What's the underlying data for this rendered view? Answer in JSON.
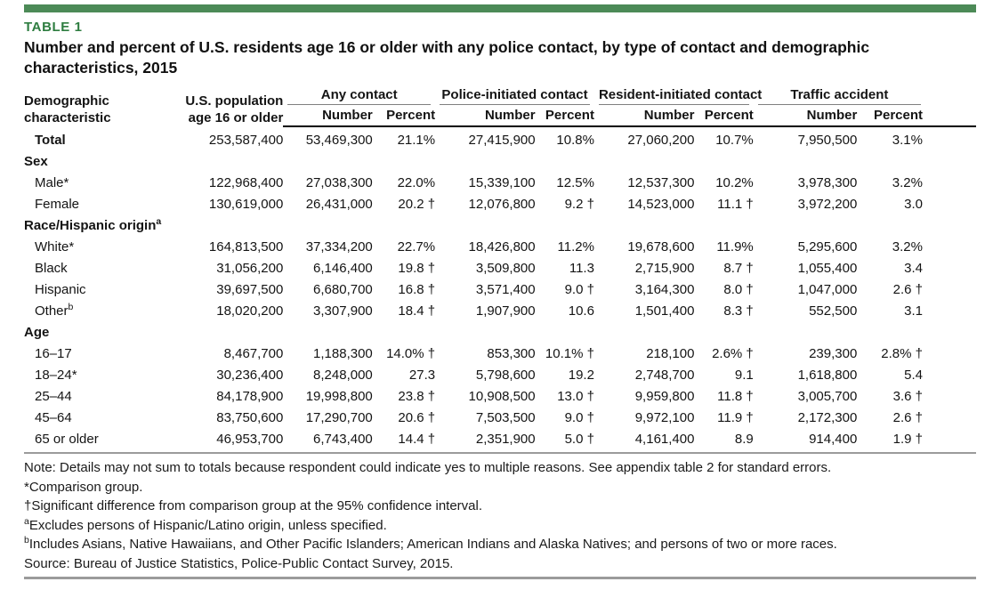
{
  "accent_color": "#4c8a57",
  "table": {
    "tag": "TABLE 1",
    "title": "Number and percent of U.S. residents age 16 or older with any police contact, by type of contact and demographic characteristics, 2015",
    "headers": {
      "demographic": "Demographic\ncharacteristic",
      "population": "U.S. population\nage 16 or older",
      "groups": [
        "Any contact",
        "Police-initiated contact",
        "Resident-initiated contact",
        "Traffic accident"
      ],
      "sub": [
        "Number",
        "Percent"
      ]
    },
    "rows": [
      {
        "type": "data",
        "label": "Total",
        "bold": true,
        "cells": [
          "253,587,400",
          "53,469,300",
          "21.1%",
          "27,415,900",
          "10.8%",
          "27,060,200",
          "10.7%",
          "7,950,500",
          "3.1%"
        ]
      },
      {
        "type": "section",
        "label": "Sex"
      },
      {
        "type": "data",
        "label": "Male*",
        "cells": [
          "122,968,400",
          "27,038,300",
          "22.0%",
          "15,339,100",
          "12.5%",
          "12,537,300",
          "10.2%",
          "3,978,300",
          "3.2%"
        ]
      },
      {
        "type": "data",
        "label": "Female",
        "cells": [
          "130,619,000",
          "26,431,000",
          "20.2 †",
          "12,076,800",
          "9.2 †",
          "14,523,000",
          "11.1 †",
          "3,972,200",
          "3.0"
        ]
      },
      {
        "type": "section",
        "label": "Race/Hispanic origin",
        "sup": "a"
      },
      {
        "type": "data",
        "label": "White*",
        "cells": [
          "164,813,500",
          "37,334,200",
          "22.7%",
          "18,426,800",
          "11.2%",
          "19,678,600",
          "11.9%",
          "5,295,600",
          "3.2%"
        ]
      },
      {
        "type": "data",
        "label": "Black",
        "cells": [
          "31,056,200",
          "6,146,400",
          "19.8 †",
          "3,509,800",
          "11.3",
          "2,715,900",
          "8.7 †",
          "1,055,400",
          "3.4"
        ]
      },
      {
        "type": "data",
        "label": "Hispanic",
        "cells": [
          "39,697,500",
          "6,680,700",
          "16.8 †",
          "3,571,400",
          "9.0 †",
          "3,164,300",
          "8.0 †",
          "1,047,000",
          "2.6 †"
        ]
      },
      {
        "type": "data",
        "label": "Other",
        "sup": "b",
        "cells": [
          "18,020,200",
          "3,307,900",
          "18.4 †",
          "1,907,900",
          "10.6",
          "1,501,400",
          "8.3 †",
          "552,500",
          "3.1"
        ]
      },
      {
        "type": "section",
        "label": "Age"
      },
      {
        "type": "data",
        "label": "16–17",
        "cells": [
          "8,467,700",
          "1,188,300",
          "14.0% †",
          "853,300",
          "10.1% †",
          "218,100",
          "2.6% †",
          "239,300",
          "2.8% †"
        ]
      },
      {
        "type": "data",
        "label": "18–24*",
        "cells": [
          "30,236,400",
          "8,248,000",
          "27.3",
          "5,798,600",
          "19.2",
          "2,748,700",
          "9.1",
          "1,618,800",
          "5.4"
        ]
      },
      {
        "type": "data",
        "label": "25–44",
        "cells": [
          "84,178,900",
          "19,998,800",
          "23.8 †",
          "10,908,500",
          "13.0 †",
          "9,959,800",
          "11.8 †",
          "3,005,700",
          "3.6 †"
        ]
      },
      {
        "type": "data",
        "label": "45–64",
        "cells": [
          "83,750,600",
          "17,290,700",
          "20.6 †",
          "7,503,500",
          "9.0 †",
          "9,972,100",
          "11.9 †",
          "2,172,300",
          "2.6 †"
        ]
      },
      {
        "type": "data",
        "label": "65 or older",
        "cells": [
          "46,953,700",
          "6,743,400",
          "14.4 †",
          "2,351,900",
          "5.0 †",
          "4,161,400",
          "8.9",
          "914,400",
          "1.9 †"
        ]
      }
    ]
  },
  "footnotes": [
    {
      "text": "Note: Details may not sum to totals because respondent could indicate yes to multiple reasons. See appendix table 2 for standard errors."
    },
    {
      "text": "*Comparison group."
    },
    {
      "text": "†Significant difference from comparison group at the 95% confidence interval."
    },
    {
      "sup": "a",
      "text": "Excludes persons of Hispanic/Latino origin, unless specified."
    },
    {
      "sup": "b",
      "text": "Includes Asians, Native Hawaiians, and Other Pacific Islanders; American Indians and Alaska Natives; and persons of two or more races."
    },
    {
      "text": "Source: Bureau of Justice Statistics, Police-Public Contact Survey, 2015."
    }
  ]
}
